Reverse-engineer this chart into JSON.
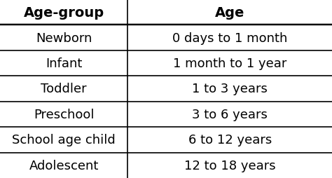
{
  "col_headers": [
    "Age-group",
    "Age"
  ],
  "rows": [
    [
      "Newborn",
      "0 days to 1 month"
    ],
    [
      "Infant",
      "1 month to 1 year"
    ],
    [
      "Toddler",
      "1 to 3 years"
    ],
    [
      "Preschool",
      "3 to 6 years"
    ],
    [
      "School age child",
      "6 to 12 years"
    ],
    [
      "Adolescent",
      "12 to 18 years"
    ]
  ],
  "background_color": "#ffffff",
  "header_fontsize": 14,
  "cell_fontsize": 13,
  "col_split": 0.385,
  "line_color": "#000000",
  "line_width": 1.2,
  "header_font_weight": "bold",
  "cell_font_weight": "normal"
}
